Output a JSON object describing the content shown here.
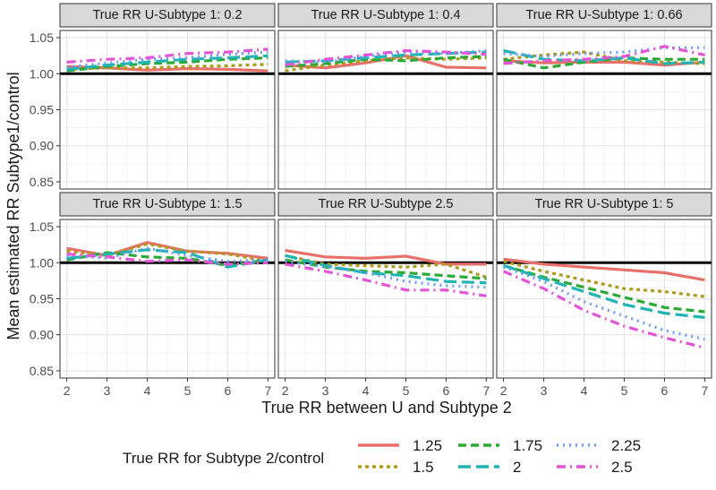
{
  "chart_data": {
    "type": "line",
    "layout": "facet-grid-2x3",
    "ylabel": "Mean estimated RR Subtype1/control",
    "xlabel": "True RR between U and Subtype 2",
    "x": [
      2,
      3,
      4,
      5,
      6,
      7
    ],
    "xticks": [
      2,
      3,
      4,
      5,
      6,
      7
    ],
    "ylim": [
      0.84,
      1.06
    ],
    "yticks": [
      0.85,
      0.9,
      0.95,
      1.0,
      1.05
    ],
    "ytick_labels": [
      "0.85",
      "0.90",
      "0.95",
      "1.00",
      "1.05"
    ],
    "reference_line": 1.0,
    "grid": true,
    "legend": {
      "title": "True RR for Subtype 2/control",
      "placement": "bottom",
      "entries": [
        {
          "label": "1.25",
          "color": "#E8706A",
          "dash": "solid"
        },
        {
          "label": "1.5",
          "color": "#AD9A1F",
          "dash": "dotted"
        },
        {
          "label": "1.75",
          "color": "#2DAA36",
          "dash": "dashed"
        },
        {
          "label": "2",
          "color": "#22B3B3",
          "dash": "longdash"
        },
        {
          "label": "2.25",
          "color": "#6D9CF0",
          "dash": "dotted-fine"
        },
        {
          "label": "2.5",
          "color": "#E354D6",
          "dash": "dotdash"
        }
      ]
    },
    "panels": [
      {
        "title": "True RR U-Subtype 1: 0.2",
        "series": [
          {
            "name": "1.25",
            "values": [
              1.01,
              1.008,
              1.005,
              1.007,
              1.006,
              1.004
            ]
          },
          {
            "name": "1.5",
            "values": [
              1.006,
              1.008,
              1.008,
              1.01,
              1.011,
              1.013
            ]
          },
          {
            "name": "1.75",
            "values": [
              1.004,
              1.01,
              1.014,
              1.016,
              1.02,
              1.022
            ]
          },
          {
            "name": "2",
            "values": [
              1.006,
              1.012,
              1.016,
              1.02,
              1.022,
              1.025
            ]
          },
          {
            "name": "2.25",
            "values": [
              1.009,
              1.015,
              1.02,
              1.022,
              1.027,
              1.03
            ]
          },
          {
            "name": "2.5",
            "values": [
              1.016,
              1.02,
              1.022,
              1.028,
              1.03,
              1.034
            ]
          }
        ]
      },
      {
        "title": "True RR U-Subtype 1: 0.4",
        "series": [
          {
            "name": "1.25",
            "values": [
              1.012,
              1.008,
              1.015,
              1.025,
              1.009,
              1.008
            ]
          },
          {
            "name": "1.5",
            "values": [
              1.004,
              1.012,
              1.018,
              1.022,
              1.02,
              1.022
            ]
          },
          {
            "name": "1.75",
            "values": [
              1.01,
              1.014,
              1.02,
              1.018,
              1.022,
              1.024
            ]
          },
          {
            "name": "2",
            "values": [
              1.016,
              1.018,
              1.022,
              1.026,
              1.028,
              1.03
            ]
          },
          {
            "name": "2.25",
            "values": [
              1.018,
              1.016,
              1.024,
              1.03,
              1.028,
              1.032
            ]
          },
          {
            "name": "2.5",
            "values": [
              1.012,
              1.02,
              1.026,
              1.032,
              1.03,
              1.027
            ]
          }
        ]
      },
      {
        "title": "True RR U-Subtype 1: 0.66",
        "series": [
          {
            "name": "1.25",
            "values": [
              1.018,
              1.015,
              1.016,
              1.016,
              1.012,
              1.016
            ]
          },
          {
            "name": "1.5",
            "values": [
              1.02,
              1.026,
              1.03,
              1.018,
              1.016,
              1.014
            ]
          },
          {
            "name": "1.75",
            "values": [
              1.02,
              1.008,
              1.016,
              1.022,
              1.02,
              1.02
            ]
          },
          {
            "name": "2",
            "values": [
              1.032,
              1.02,
              1.018,
              1.022,
              1.014,
              1.016
            ]
          },
          {
            "name": "2.25",
            "values": [
              1.028,
              1.024,
              1.028,
              1.03,
              1.036,
              1.036
            ]
          },
          {
            "name": "2.5",
            "values": [
              1.014,
              1.018,
              1.02,
              1.024,
              1.038,
              1.026
            ]
          }
        ]
      },
      {
        "title": "True RR U-Subtype 1: 1.5",
        "series": [
          {
            "name": "1.25",
            "values": [
              1.02,
              1.01,
              1.028,
              1.016,
              1.013,
              1.006
            ]
          },
          {
            "name": "1.5",
            "values": [
              1.016,
              1.01,
              1.026,
              1.016,
              1.012,
              1.002
            ]
          },
          {
            "name": "1.75",
            "values": [
              1.004,
              1.014,
              1.008,
              1.006,
              0.996,
              1.004
            ]
          },
          {
            "name": "2",
            "values": [
              1.006,
              1.012,
              1.018,
              1.014,
              0.994,
              1.004
            ]
          },
          {
            "name": "2.25",
            "values": [
              1.01,
              1.006,
              1.02,
              1.01,
              1.002,
              1.004
            ]
          },
          {
            "name": "2.5",
            "values": [
              1.012,
              1.008,
              1.002,
              1.004,
              0.998,
              1.0
            ]
          }
        ]
      },
      {
        "title": "True RR U-Subtype 2.5",
        "series": [
          {
            "name": "1.25",
            "values": [
              1.017,
              1.008,
              1.006,
              1.009,
              0.998,
              0.998
            ]
          },
          {
            "name": "1.5",
            "values": [
              1.01,
              0.998,
              0.996,
              0.994,
              0.998,
              0.98
            ]
          },
          {
            "name": "1.75",
            "values": [
              1.004,
              0.994,
              0.988,
              0.986,
              0.982,
              0.978
            ]
          },
          {
            "name": "2",
            "values": [
              1.01,
              0.996,
              0.986,
              0.982,
              0.974,
              0.972
            ]
          },
          {
            "name": "2.25",
            "values": [
              1.002,
              0.994,
              0.986,
              0.974,
              0.968,
              0.966
            ]
          },
          {
            "name": "2.5",
            "values": [
              0.998,
              0.988,
              0.976,
              0.962,
              0.962,
              0.954
            ]
          }
        ]
      },
      {
        "title": "True RR U-Subtype 1: 5",
        "series": [
          {
            "name": "1.25",
            "values": [
              1.005,
              0.998,
              0.994,
              0.99,
              0.986,
              0.976
            ]
          },
          {
            "name": "1.5",
            "values": [
              1.002,
              0.988,
              0.976,
              0.964,
              0.96,
              0.953
            ]
          },
          {
            "name": "1.75",
            "values": [
              0.996,
              0.98,
              0.966,
              0.952,
              0.938,
              0.932
            ]
          },
          {
            "name": "2",
            "values": [
              0.996,
              0.978,
              0.96,
              0.942,
              0.93,
              0.924
            ]
          },
          {
            "name": "2.25",
            "values": [
              0.994,
              0.974,
              0.946,
              0.926,
              0.906,
              0.894
            ]
          },
          {
            "name": "2.5",
            "values": [
              0.988,
              0.964,
              0.934,
              0.912,
              0.896,
              0.882
            ]
          }
        ]
      }
    ]
  }
}
